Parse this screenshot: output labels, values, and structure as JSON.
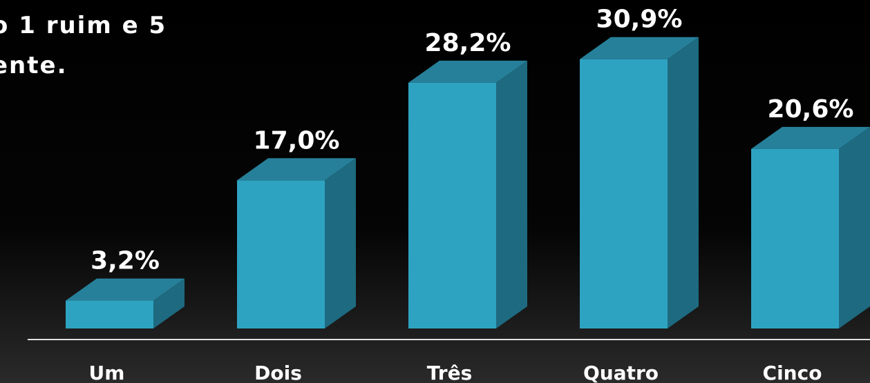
{
  "chart_data": {
    "type": "bar3d",
    "title_lines": [
      "o 1 ruim e 5",
      "ente."
    ],
    "categories": [
      "Um",
      "Dois",
      "Três",
      "Quatro",
      "Cinco"
    ],
    "values": [
      3.2,
      17.0,
      28.2,
      30.9,
      20.6
    ],
    "value_labels": [
      "3,2%",
      "17,0%",
      "28,2%",
      "30,9%",
      "20,6%"
    ],
    "color": "#2ea3c1"
  }
}
